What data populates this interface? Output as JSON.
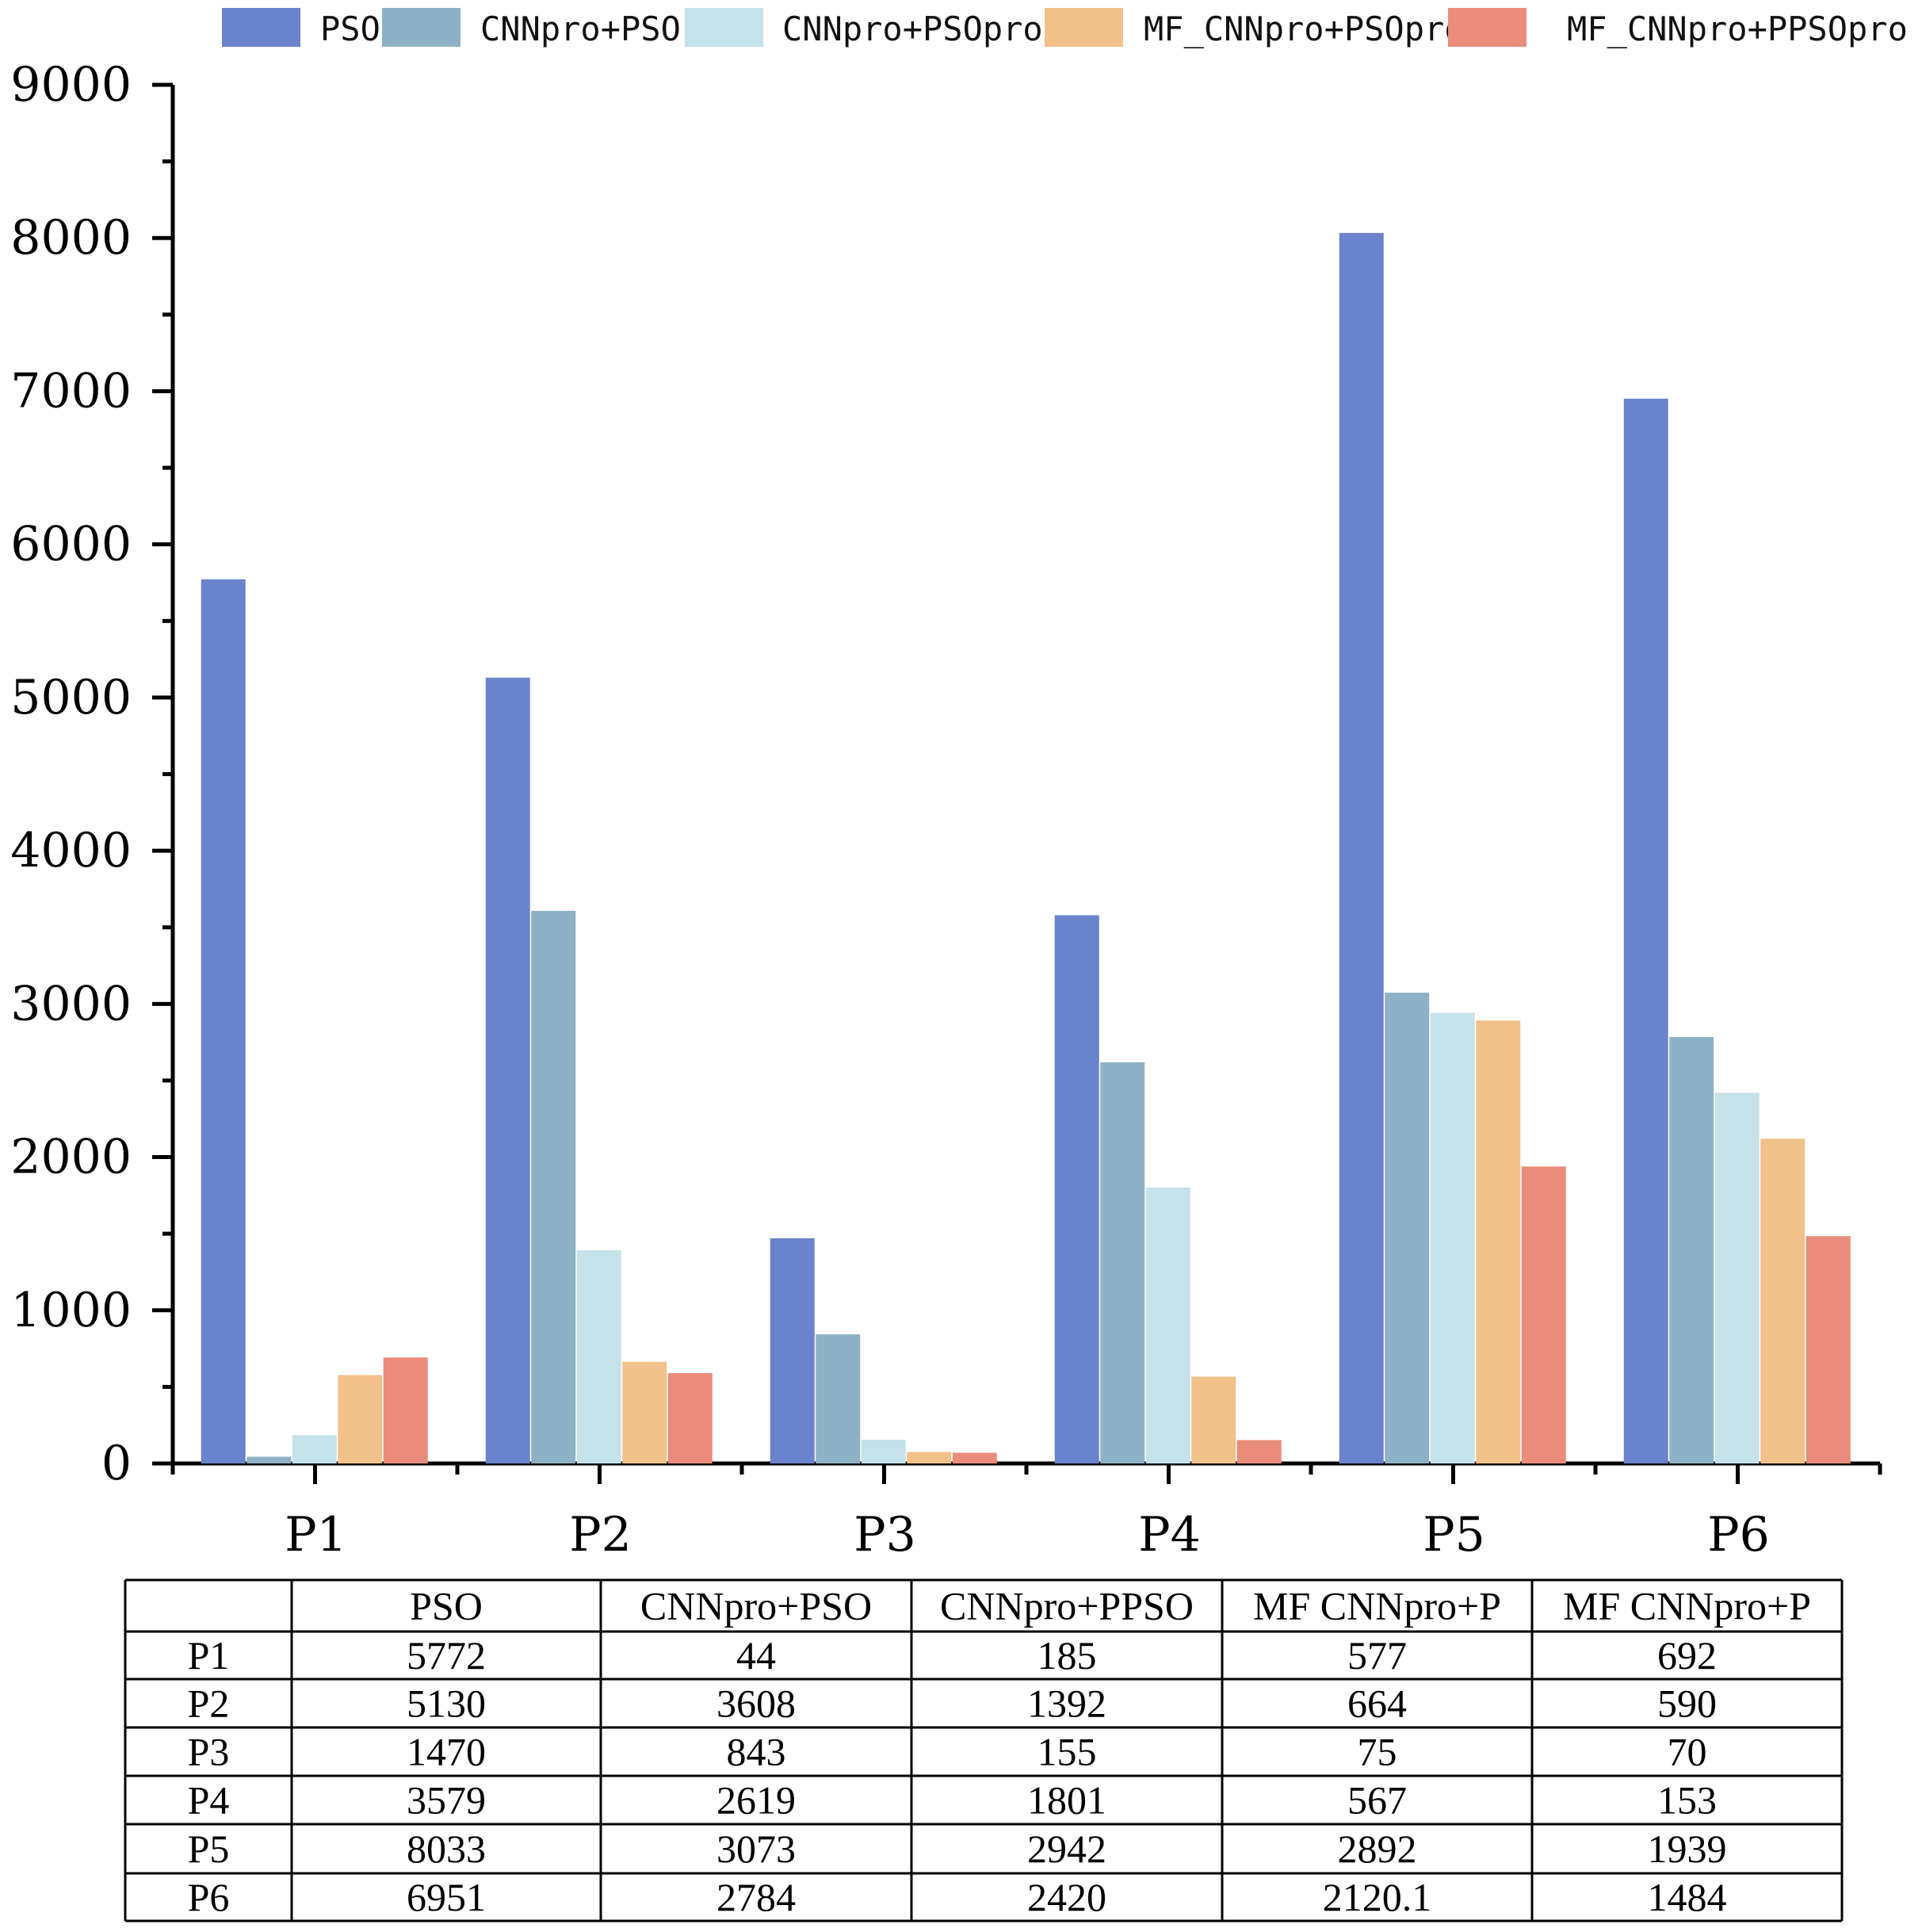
{
  "chart_data": {
    "type": "bar",
    "title": "",
    "xlabel": "",
    "ylabel": "",
    "ylim": [
      0,
      9000
    ],
    "yticks": [
      0,
      1000,
      2000,
      3000,
      4000,
      5000,
      6000,
      7000,
      8000,
      9000
    ],
    "ytick_labels": [
      "0",
      "1000",
      "2000",
      "3000",
      "4000",
      "5000",
      "6000",
      "7000",
      "8000",
      "9000"
    ],
    "categories": [
      "P1",
      "P2",
      "P3",
      "P4",
      "P5",
      "P6"
    ],
    "legend_position": "top",
    "grid": false,
    "series": [
      {
        "name": "PSO",
        "color": "#6b83cc",
        "values": [
          5772,
          5130,
          1470,
          3579,
          8033,
          6951
        ]
      },
      {
        "name": "CNNpro+PSO",
        "color": "#8fb1c5",
        "values": [
          44,
          3608,
          843,
          2619,
          3073,
          2784
        ]
      },
      {
        "name": "CNNpro+PSOpro",
        "color": "#c5e2ea",
        "values": [
          185,
          1392,
          155,
          1801,
          2942,
          2420
        ]
      },
      {
        "name": "MF_CNNpro+PSOpro",
        "color": "#f2c18a",
        "values": [
          577,
          664,
          75,
          567,
          2892,
          2120.1
        ]
      },
      {
        "name": "MF_CNNpro+PPSOpro",
        "color": "#e98c7a",
        "values": [
          692,
          590,
          70,
          153,
          1939,
          1484
        ]
      }
    ],
    "table": {
      "corner": "",
      "headers": [
        "PSO",
        "CNNpro+PSO",
        "CNNpro+PPSO",
        "MF  CNNpro+P",
        "MF  CNNpro+P"
      ],
      "rows": [
        {
          "label": "P1",
          "cells": [
            "5772",
            "44",
            "185",
            "577",
            "692"
          ]
        },
        {
          "label": "P2",
          "cells": [
            "5130",
            "3608",
            "1392",
            "664",
            "590"
          ]
        },
        {
          "label": "P3",
          "cells": [
            "1470",
            "843",
            "155",
            "75",
            "70"
          ]
        },
        {
          "label": "P4",
          "cells": [
            "3579",
            "2619",
            "1801",
            "567",
            "153"
          ]
        },
        {
          "label": "P5",
          "cells": [
            "8033",
            "3073",
            "2942",
            "2892",
            "1939"
          ]
        },
        {
          "label": "P6",
          "cells": [
            "6951",
            "2784",
            "2420",
            "2120.1",
            "1484"
          ]
        }
      ]
    }
  }
}
